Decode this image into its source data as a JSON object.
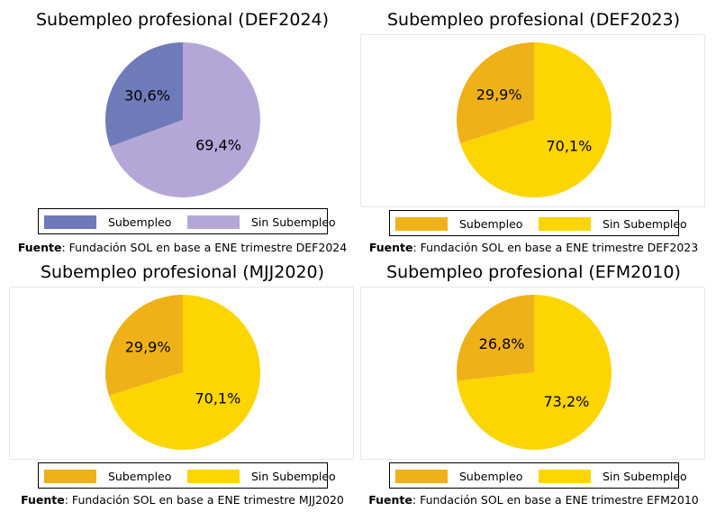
{
  "chart_data": [
    {
      "type": "pie",
      "title": "Subempleo profesional (DEF2024)",
      "categories": [
        "Subempleo",
        "Sin Subempleo"
      ],
      "values": [
        30.6,
        69.4
      ],
      "labels": [
        "30,6%",
        "69,4%"
      ],
      "colors": [
        "#6f7ab8",
        "#b4a7d8"
      ],
      "legend": "bottom",
      "source_label": "Fuente",
      "source_text": ": Fundación SOL en base a ENE trimestre DEF2024"
    },
    {
      "type": "pie",
      "title": "Subempleo profesional (DEF2023)",
      "categories": [
        "Subempleo",
        "Sin Subempleo"
      ],
      "values": [
        29.9,
        70.1
      ],
      "labels": [
        "29,9%",
        "70,1%"
      ],
      "colors": [
        "#efb118",
        "#fdd500"
      ],
      "legend": "bottom",
      "source_label": "Fuente",
      "source_text": ": Fundación SOL en base a ENE trimestre DEF2023"
    },
    {
      "type": "pie",
      "title": "Subempleo profesional (MJJ2020)",
      "categories": [
        "Subempleo",
        "Sin Subempleo"
      ],
      "values": [
        29.9,
        70.1
      ],
      "labels": [
        "29,9%",
        "70,1%"
      ],
      "colors": [
        "#efb118",
        "#fdd500"
      ],
      "legend": "bottom",
      "source_label": "Fuente",
      "source_text": ": Fundación SOL en base a ENE trimestre MJJ2020"
    },
    {
      "type": "pie",
      "title": "Subempleo profesional (EFM2010)",
      "categories": [
        "Subempleo",
        "Sin Subempleo"
      ],
      "values": [
        26.8,
        73.2
      ],
      "labels": [
        "26,8%",
        "73,2%"
      ],
      "colors": [
        "#efb118",
        "#fdd500"
      ],
      "legend": "bottom",
      "source_label": "Fuente",
      "source_text": ": Fundación SOL en base a ENE trimestre EFM2010"
    }
  ]
}
